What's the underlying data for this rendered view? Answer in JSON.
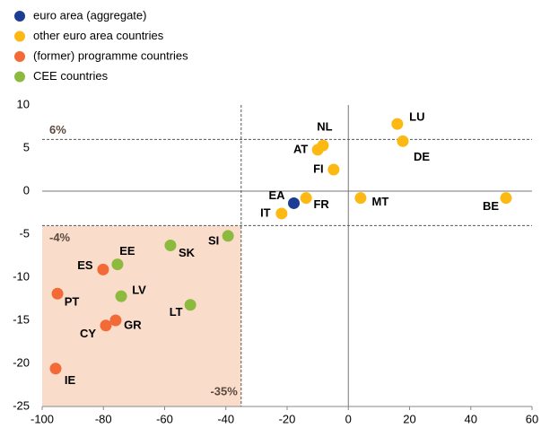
{
  "chart_data": {
    "type": "scatter",
    "series": [
      {
        "name": "euro area (aggregate)",
        "color": "#1c3d94",
        "labels": [
          "EA"
        ],
        "x": [
          -17.8
        ],
        "y": [
          -1.4
        ]
      },
      {
        "name": "other euro area countries",
        "color": "#fdb913",
        "labels": [
          "FR",
          "IT",
          "NL",
          "AT",
          "FI",
          "MT",
          "LU",
          "DE",
          "BE"
        ],
        "x": [
          -13.8,
          -21.8,
          -8.3,
          -10,
          -4.8,
          4,
          16,
          17.8,
          51.5
        ],
        "y": [
          -0.8,
          -2.6,
          5.3,
          4.8,
          2.5,
          -0.8,
          7.8,
          5.8,
          -0.8
        ]
      },
      {
        "name": "(former) programme countries",
        "color": "#f26a35",
        "labels": [
          "ES",
          "PT",
          "GR",
          "CY",
          "IE"
        ],
        "x": [
          -80.1,
          -95,
          -76,
          -79.2,
          -95.6
        ],
        "y": [
          -9.1,
          -11.9,
          -15,
          -15.6,
          -20.6
        ]
      },
      {
        "name": "CEE countries",
        "color": "#8cba3f",
        "labels": [
          "SI",
          "SK",
          "EE",
          "LV",
          "LT"
        ],
        "x": [
          -39.3,
          -58.1,
          -75.4,
          -74.2,
          -51.6
        ],
        "y": [
          -5.2,
          -6.3,
          -8.5,
          -12.2,
          -13.2
        ]
      }
    ],
    "reference_lines": {
      "horizontal": [
        {
          "value": 6,
          "label": "6%"
        },
        {
          "value": -4,
          "label": "-4%"
        }
      ],
      "vertical": [
        {
          "value": -35,
          "label": "-35%"
        }
      ]
    },
    "shade_color": "#fadccb",
    "xlim": [
      -100,
      60
    ],
    "xticks": [
      -100,
      -80,
      -60,
      -40,
      -20,
      0,
      20,
      40,
      60
    ],
    "ylim": [
      -25,
      10
    ],
    "yticks": [
      -25,
      -20,
      -15,
      -10,
      -5,
      0,
      5,
      10
    ]
  }
}
